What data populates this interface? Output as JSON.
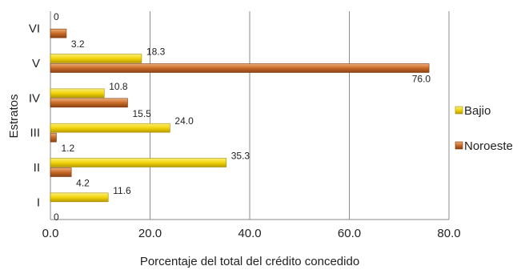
{
  "chart_data": {
    "type": "bar",
    "orientation": "horizontal",
    "categories": [
      "I",
      "II",
      "III",
      "IV",
      "V",
      "VI"
    ],
    "series": [
      {
        "name": "Bajio",
        "values": [
          11.6,
          35.3,
          24.0,
          10.8,
          18.3,
          0
        ],
        "labels": [
          "11.6",
          "35.3",
          "24.0",
          "10.8",
          "18.3",
          "0"
        ]
      },
      {
        "name": "Noroeste",
        "values": [
          0,
          4.2,
          1.2,
          15.5,
          76.0,
          3.2
        ],
        "labels": [
          "0",
          "4.2",
          "1.2",
          "15.5",
          "76.0",
          "3.2"
        ]
      }
    ],
    "xlabel": "Porcentaje del total del crédito concedido",
    "ylabel": "Estratos",
    "xlim": [
      0,
      80
    ],
    "xticks": [
      0,
      20,
      40,
      60,
      80
    ],
    "xtick_labels": [
      "0.0",
      "20.0",
      "40.0",
      "60.0",
      "80.0"
    ],
    "grid": "vertical",
    "legend_position": "right",
    "colors": {
      "Bajio": "#f2d40a",
      "Noroeste": "#c86a28"
    }
  }
}
